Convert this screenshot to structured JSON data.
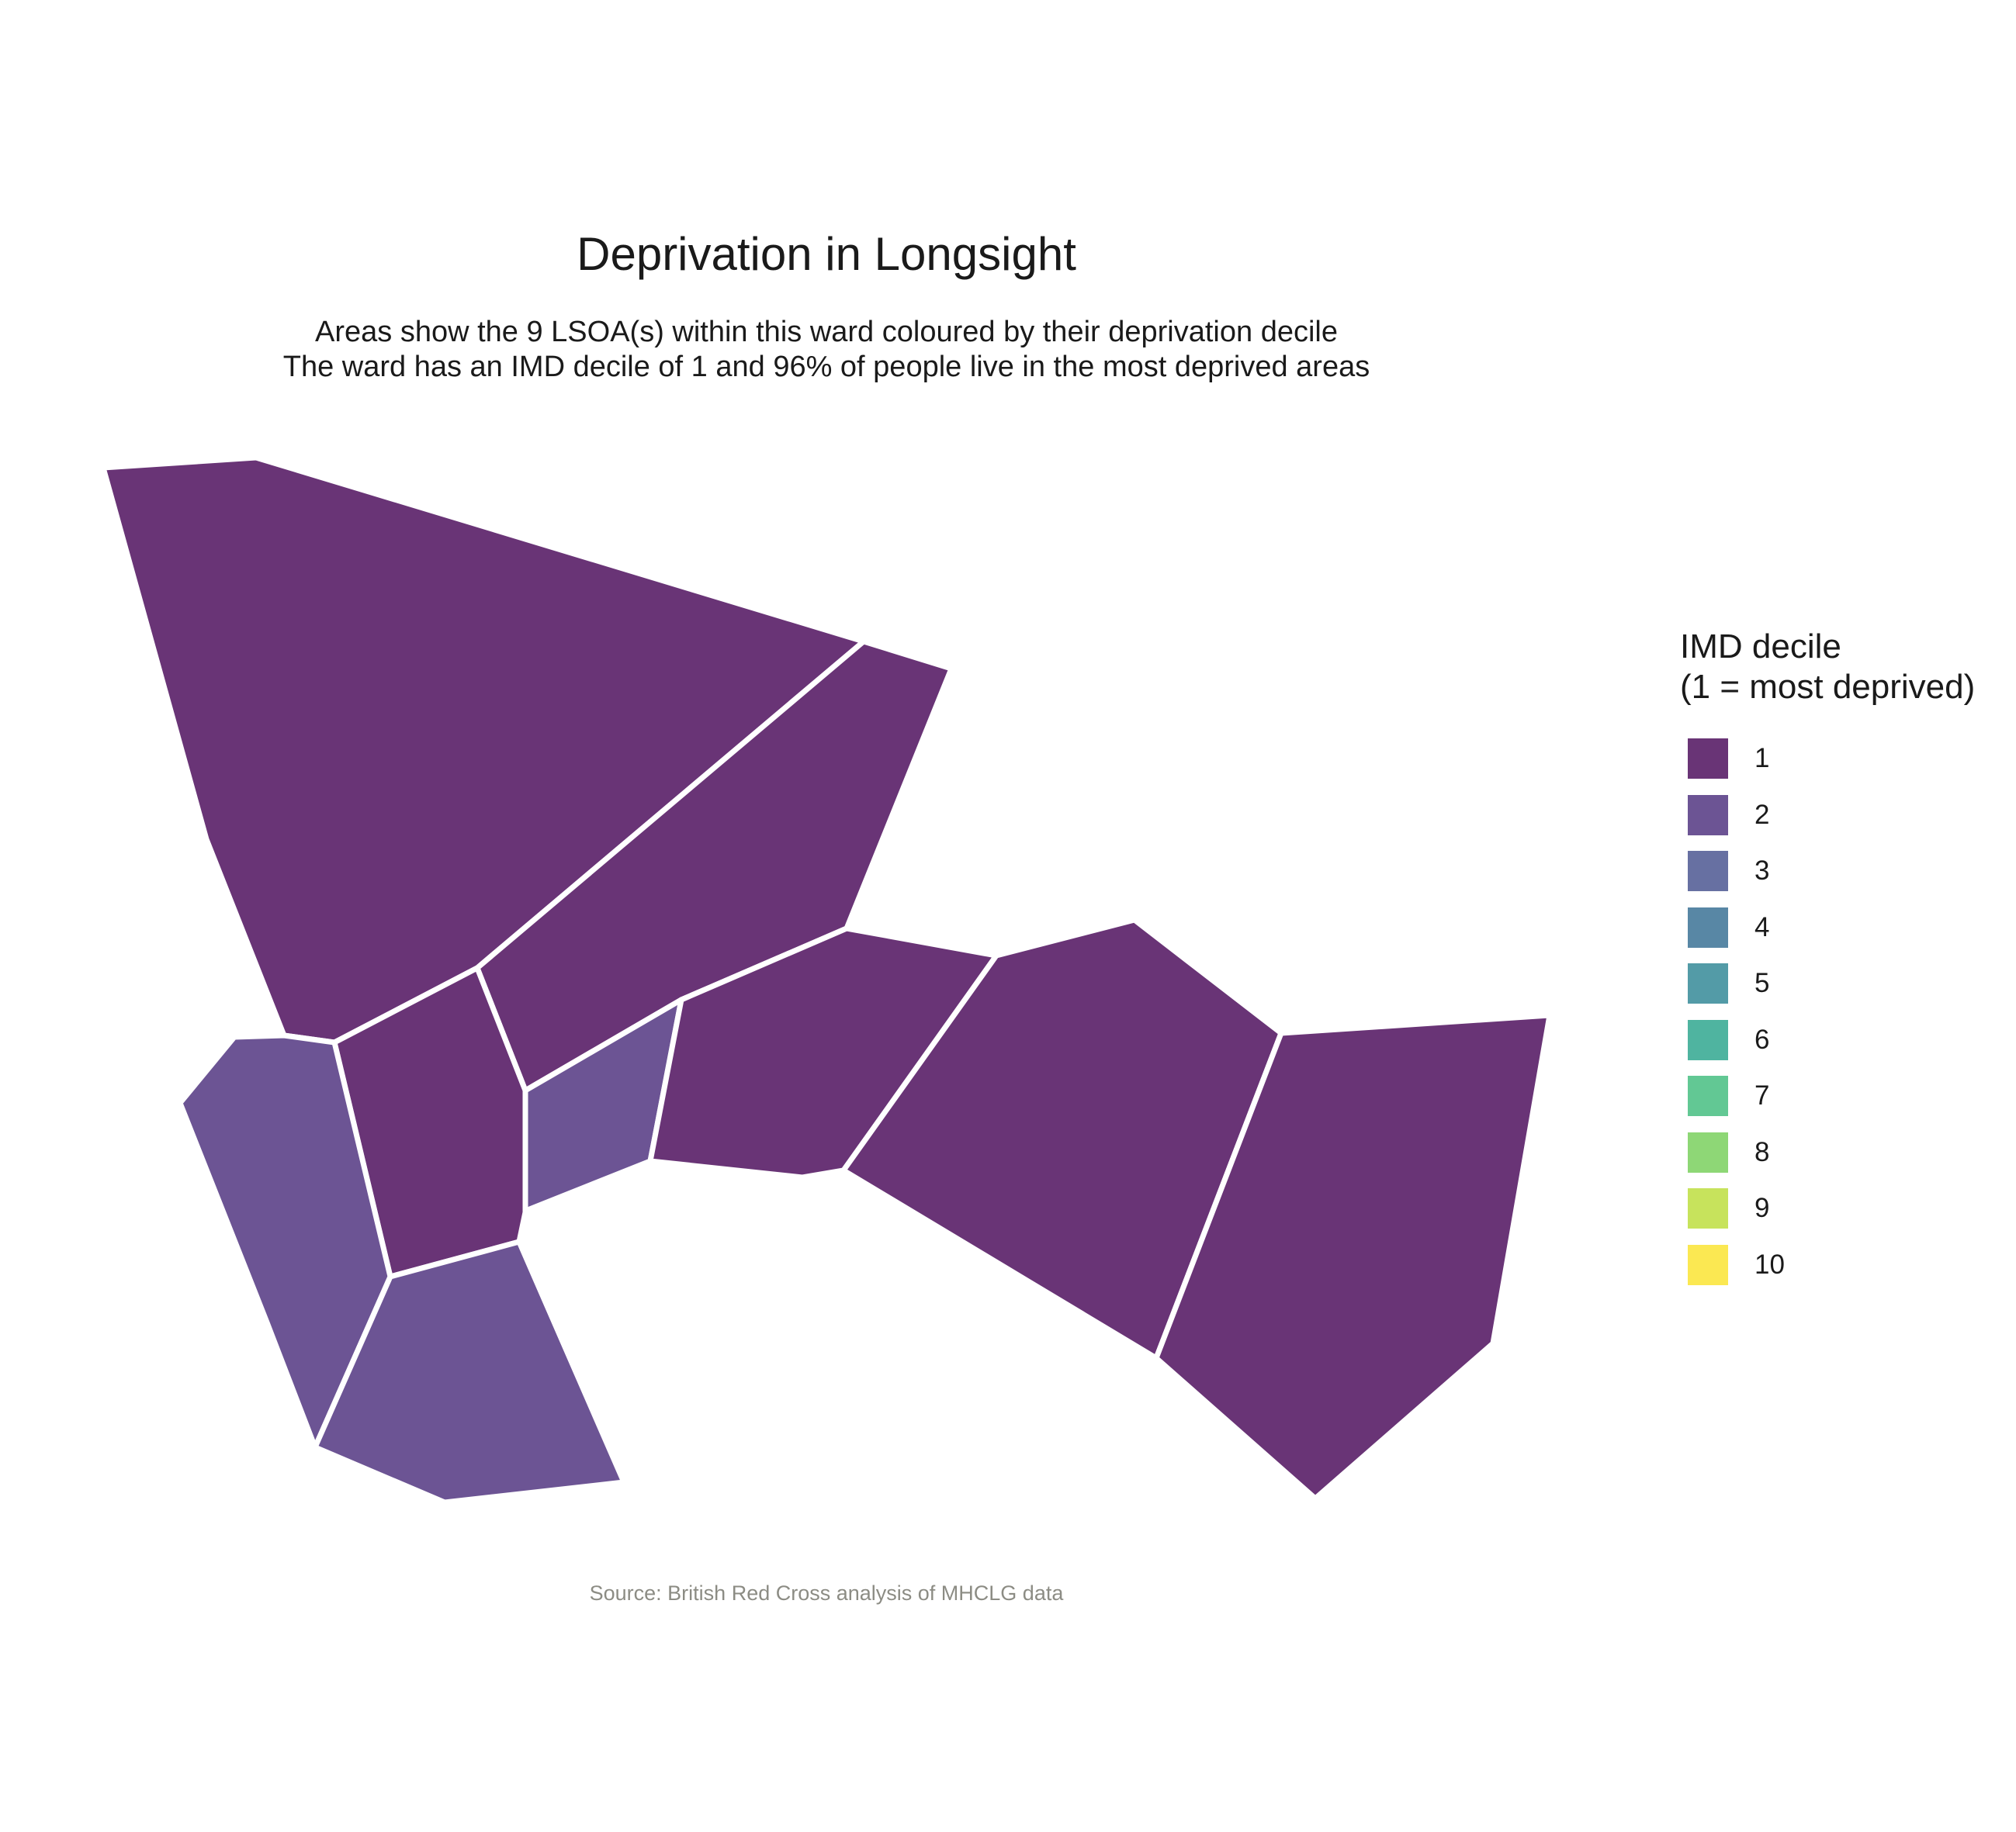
{
  "title": "Deprivation in Longsight",
  "subtitle_lines": [
    "Areas show the 9 LSOA(s) within this ward coloured by their deprivation decile",
    "The ward has an IMD decile of 1 and 96% of people live in the most deprived areas"
  ],
  "legend": {
    "title_lines": [
      "IMD decile",
      "(1 = most deprived)"
    ],
    "items": [
      {
        "label": "1",
        "color": "#693476"
      },
      {
        "label": "2",
        "color": "#6c5494"
      },
      {
        "label": "3",
        "color": "#6770a2"
      },
      {
        "label": "4",
        "color": "#5887a5"
      },
      {
        "label": "5",
        "color": "#539ba7"
      },
      {
        "label": "6",
        "color": "#4fb4a0"
      },
      {
        "label": "7",
        "color": "#62c894"
      },
      {
        "label": "8",
        "color": "#8ed776"
      },
      {
        "label": "9",
        "color": "#c7e35c"
      },
      {
        "label": "10",
        "color": "#fbe852"
      }
    ]
  },
  "areas": [
    {
      "id": "north-west",
      "decile": 1
    },
    {
      "id": "north-east",
      "decile": 1
    },
    {
      "id": "centre",
      "decile": 1
    },
    {
      "id": "west",
      "decile": 2
    },
    {
      "id": "small-centre",
      "decile": 2
    },
    {
      "id": "south",
      "decile": 2
    },
    {
      "id": "middle-east",
      "decile": 1
    },
    {
      "id": "east",
      "decile": 1
    },
    {
      "id": "far-east",
      "decile": 1
    }
  ],
  "caption": "Source: British Red Cross analysis of MHCLG data"
}
